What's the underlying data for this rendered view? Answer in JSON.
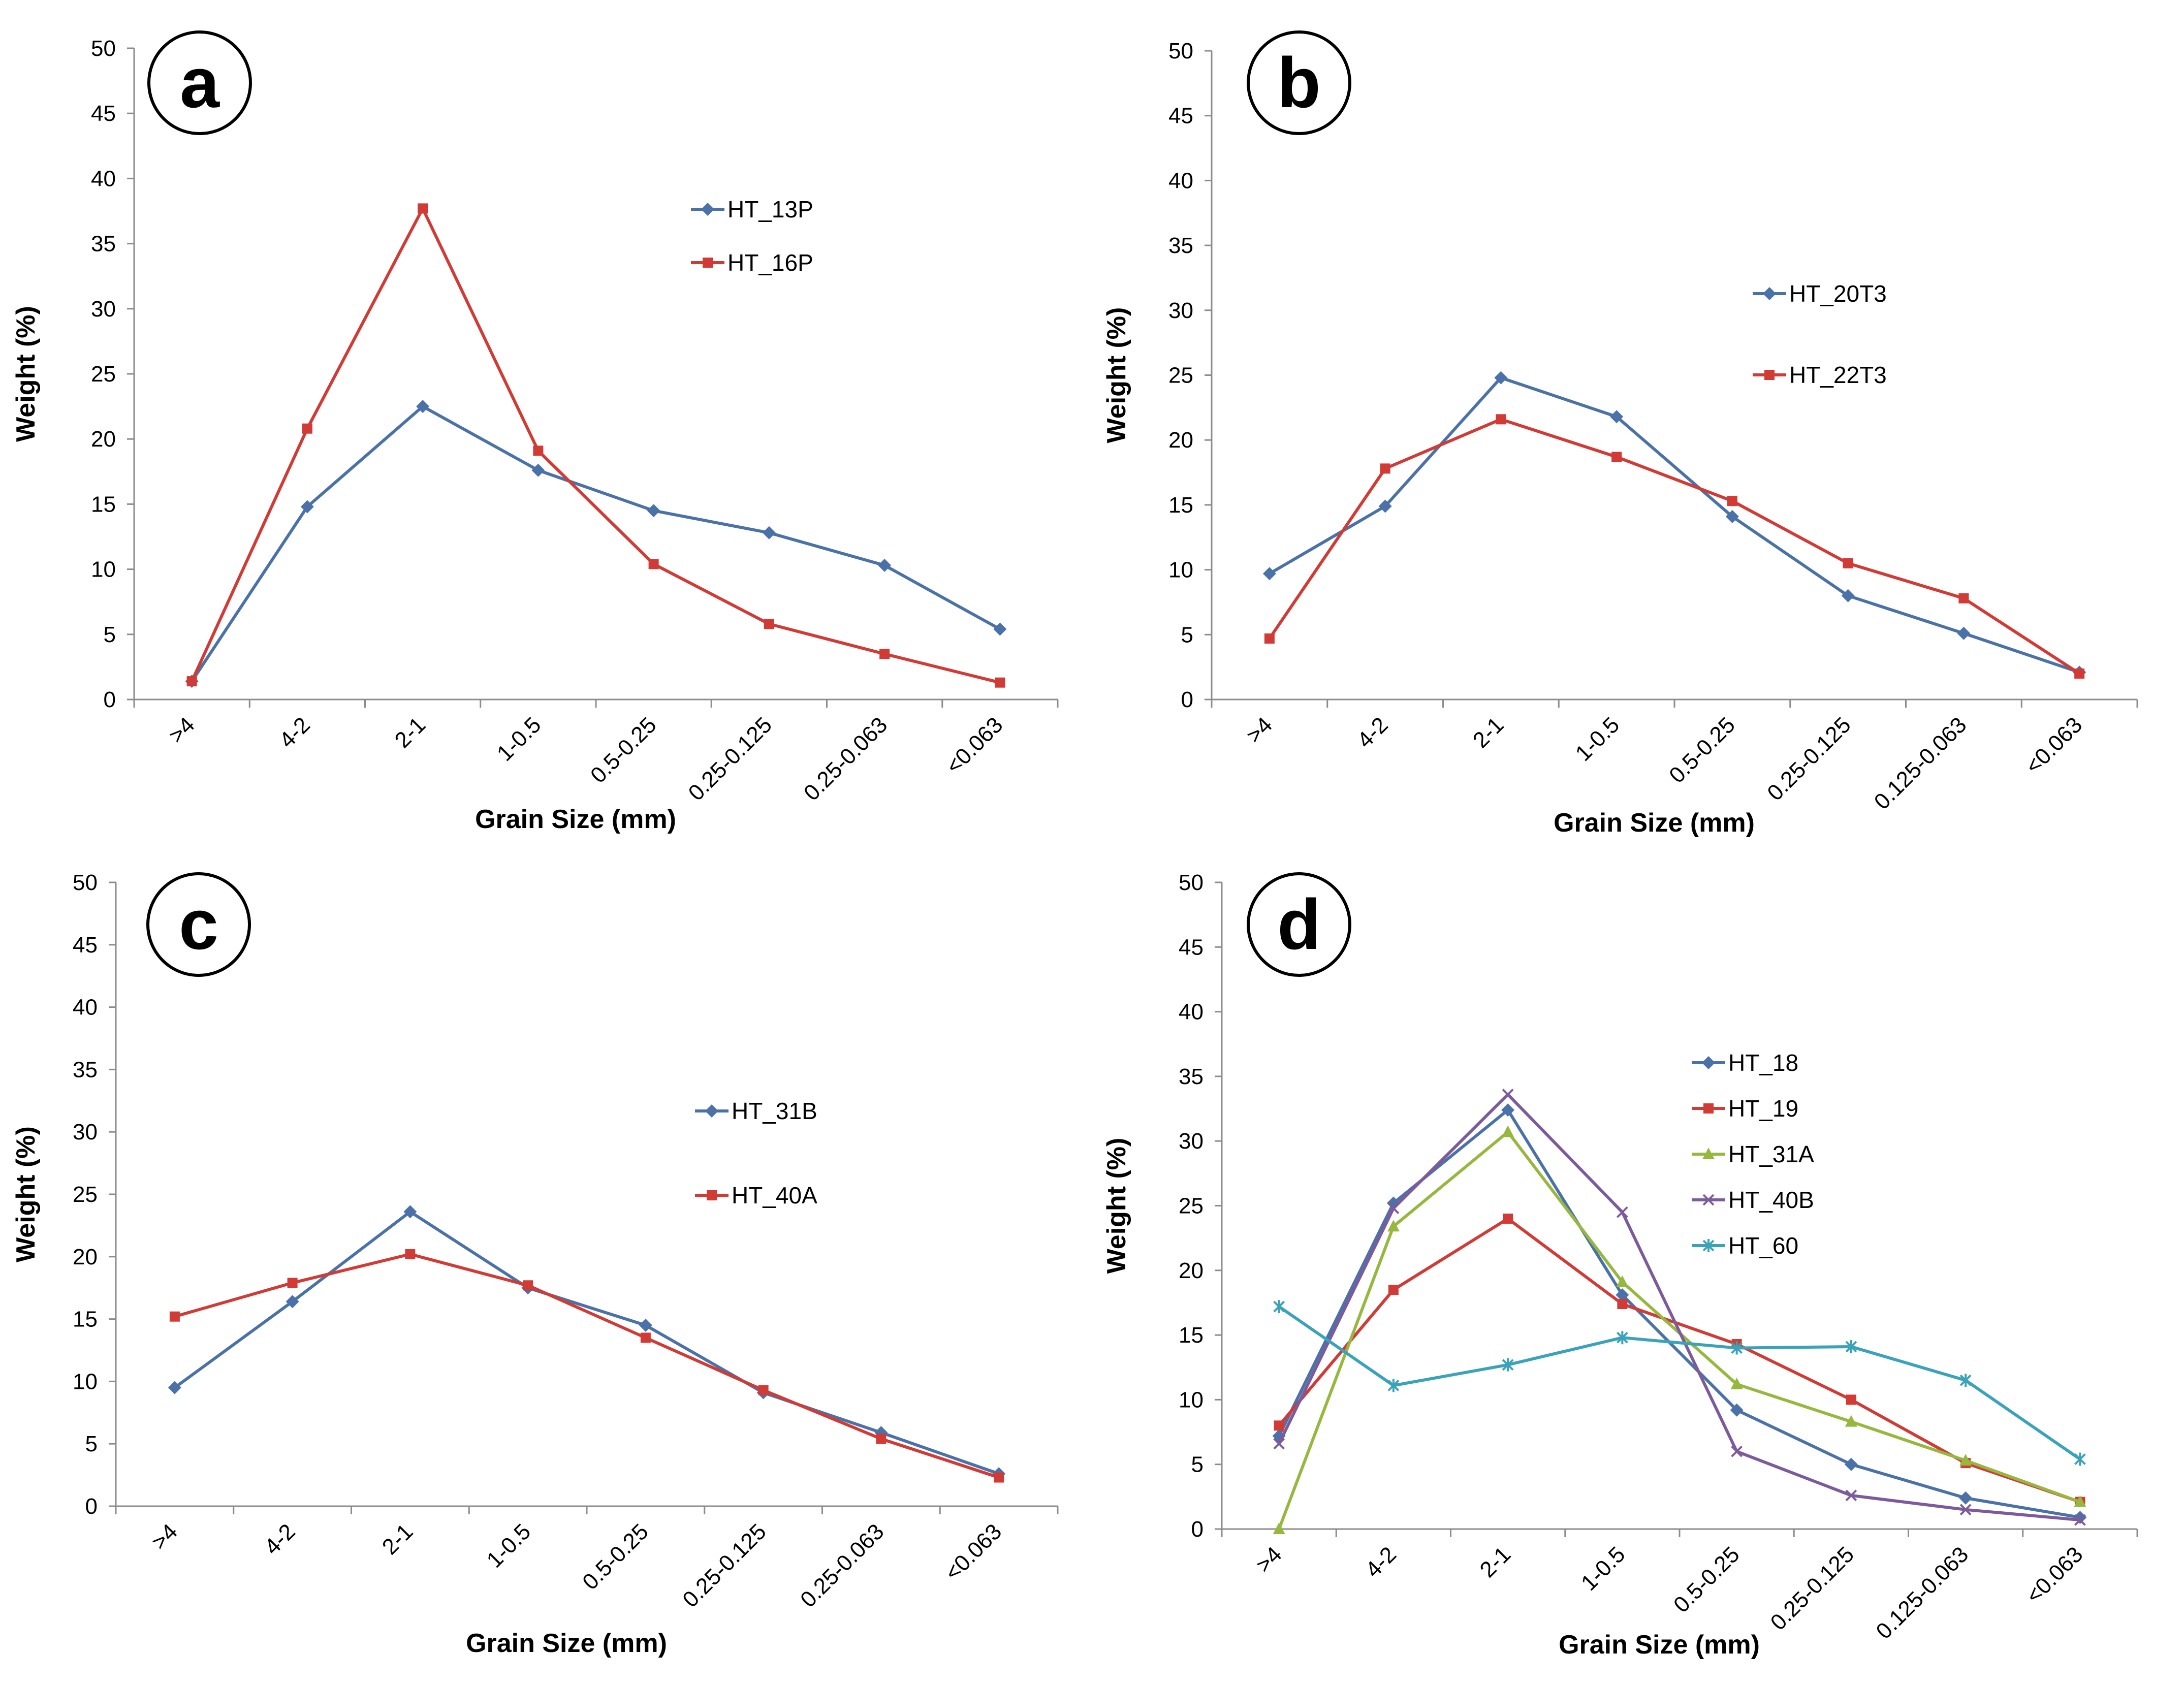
{
  "chart_data": [
    {
      "type": "line",
      "panel_label": "a",
      "categories": [
        ">4",
        "4-2",
        "2-1",
        "1-0.5",
        "0.5-0.25",
        "0.25-0.125",
        "0.25-0.063",
        "<0.063"
      ],
      "series": [
        {
          "name": "HT_13P",
          "color": "#4a72a8",
          "marker": "diamond",
          "values": [
            1.4,
            14.8,
            22.5,
            17.6,
            14.5,
            12.8,
            10.3,
            5.4
          ]
        },
        {
          "name": "HT_16P",
          "color": "#d23a35",
          "marker": "square",
          "values": [
            1.4,
            20.8,
            37.7,
            19.1,
            10.4,
            5.8,
            3.5,
            1.3
          ]
        }
      ],
      "xlabel": "Grain Size (mm)",
      "ylabel": "Weight (%)",
      "ylim": [
        0,
        50
      ],
      "yticks": [
        "0",
        "5",
        "10",
        "15",
        "20",
        "25",
        "30",
        "35",
        "40",
        "45",
        "50"
      ],
      "grid": false,
      "legend_position": "right"
    },
    {
      "type": "line",
      "panel_label": "b",
      "categories": [
        ">4",
        "4-2",
        "2-1",
        "1-0.5",
        "0.5-0.25",
        "0.25-0.125",
        "0.125-0.063",
        "<0.063"
      ],
      "series": [
        {
          "name": "HT_20T3",
          "color": "#4a72a8",
          "marker": "diamond",
          "values": [
            9.7,
            14.9,
            24.8,
            21.8,
            14.1,
            8.0,
            5.1,
            2.1
          ]
        },
        {
          "name": "HT_22T3",
          "color": "#d23a35",
          "marker": "square",
          "values": [
            4.7,
            17.8,
            21.6,
            18.7,
            15.3,
            10.5,
            7.8,
            2.0
          ]
        }
      ],
      "xlabel": "Grain Size (mm)",
      "ylabel": "Weight (%)",
      "ylim": [
        0,
        50
      ],
      "yticks": [
        "0",
        "5",
        "10",
        "15",
        "20",
        "25",
        "30",
        "35",
        "40",
        "45",
        "50"
      ],
      "grid": false,
      "legend_position": "right"
    },
    {
      "type": "line",
      "panel_label": "c",
      "categories": [
        ">4",
        "4-2",
        "2-1",
        "1-0.5",
        "0.5-0.25",
        "0.25-0.125",
        "0.25-0.063",
        "<0.063"
      ],
      "series": [
        {
          "name": "HT_31B",
          "color": "#4a72a8",
          "marker": "diamond",
          "values": [
            9.5,
            16.4,
            23.6,
            17.5,
            14.5,
            9.1,
            5.9,
            2.6
          ]
        },
        {
          "name": "HT_40A",
          "color": "#d23a35",
          "marker": "square",
          "values": [
            15.2,
            17.9,
            20.2,
            17.7,
            13.5,
            9.3,
            5.4,
            2.3
          ]
        }
      ],
      "xlabel": "Grain Size (mm)",
      "ylabel": "Weight (%)",
      "ylim": [
        0,
        50
      ],
      "yticks": [
        "0",
        "5",
        "10",
        "15",
        "20",
        "25",
        "30",
        "35",
        "40",
        "45",
        "50"
      ],
      "grid": false,
      "legend_position": "right"
    },
    {
      "type": "line",
      "panel_label": "d",
      "categories": [
        ">4",
        "4-2",
        "2-1",
        "1-0.5",
        "0.5-0.25",
        "0.25-0.125",
        "0.125-0.063",
        "<0.063"
      ],
      "series": [
        {
          "name": "HT_18",
          "color": "#4a72a8",
          "marker": "diamond",
          "values": [
            7.2,
            25.2,
            32.4,
            18.1,
            9.2,
            5.0,
            2.4,
            0.9
          ]
        },
        {
          "name": "HT_19",
          "color": "#d23a35",
          "marker": "square",
          "values": [
            8.0,
            18.5,
            24.0,
            17.4,
            14.3,
            10.0,
            5.1,
            2.1
          ]
        },
        {
          "name": "HT_31A",
          "color": "#97b83f",
          "marker": "triangle",
          "values": [
            0.0,
            23.4,
            30.7,
            19.1,
            11.2,
            8.3,
            5.3,
            2.1
          ]
        },
        {
          "name": "HT_40B",
          "color": "#7d5a9b",
          "marker": "x",
          "values": [
            6.6,
            24.8,
            33.6,
            24.5,
            6.0,
            2.6,
            1.5,
            0.7
          ]
        },
        {
          "name": "HT_60",
          "color": "#3aa3b9",
          "marker": "star",
          "values": [
            17.2,
            11.1,
            12.7,
            14.8,
            14.0,
            14.1,
            11.5,
            5.4
          ]
        }
      ],
      "xlabel": "Grain Size (mm)",
      "ylabel": "Weight (%)",
      "ylim": [
        0,
        50
      ],
      "yticks": [
        "0",
        "5",
        "10",
        "15",
        "20",
        "25",
        "30",
        "35",
        "40",
        "45",
        "50"
      ],
      "grid": false,
      "legend_position": "right"
    }
  ]
}
